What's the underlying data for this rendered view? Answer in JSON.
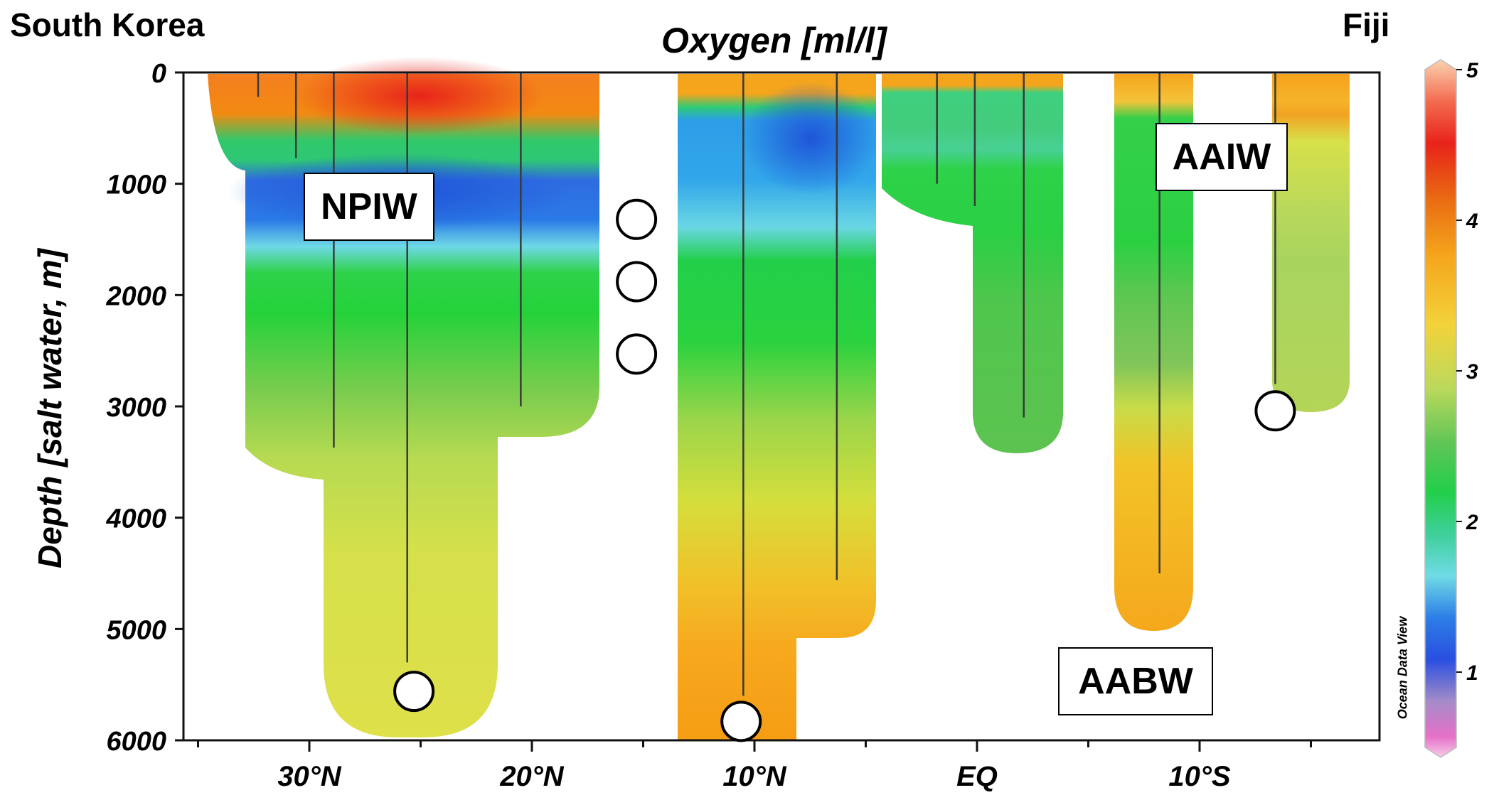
{
  "header": {
    "left_label": "South Korea",
    "right_label": "Fiji"
  },
  "chart_data": {
    "type": "heatmap",
    "title": "Oxygen [ml/l]",
    "xlabel": "",
    "ylabel": "Depth [salt water, m]",
    "x_ticks": [
      "30°N",
      "20°N",
      "10°N",
      "EQ",
      "10°S"
    ],
    "x_tick_positions": [
      30,
      20,
      10,
      0,
      -10
    ],
    "ylim": [
      0,
      6000
    ],
    "y_ticks": [
      0,
      1000,
      2000,
      3000,
      4000,
      5000,
      6000
    ],
    "colorbar": {
      "min": 0.5,
      "max": 5,
      "ticks": [
        1,
        2,
        3,
        4,
        5
      ],
      "credit": "Ocean Data View"
    },
    "water_masses": [
      {
        "label": "NPIW",
        "lat": 31.5,
        "depth": 1200
      },
      {
        "label": "AAIW",
        "lat": -13.5,
        "depth": 750
      },
      {
        "label": "AABW",
        "lat": -7.5,
        "depth": 5450
      }
    ],
    "stations": [
      {
        "lat": 32.3,
        "depth": 220
      },
      {
        "lat": 30.6,
        "depth": 770
      },
      {
        "lat": 28.9,
        "depth": 3370
      },
      {
        "lat": 25.6,
        "depth": 5300
      },
      {
        "lat": 20.5,
        "depth": 3000
      },
      {
        "lat": 10.5,
        "depth": 5600
      },
      {
        "lat": 6.3,
        "depth": 4560
      },
      {
        "lat": 1.8,
        "depth": 1000
      },
      {
        "lat": 0.1,
        "depth": 1200
      },
      {
        "lat": -2.1,
        "depth": 3100
      },
      {
        "lat": -8.2,
        "depth": 4500
      },
      {
        "lat": -13.4,
        "depth": 2800
      }
    ],
    "markers": [
      {
        "lat": 25.3,
        "depth": 5560
      },
      {
        "lat": 15.3,
        "depth": 1320
      },
      {
        "lat": 15.3,
        "depth": 1880
      },
      {
        "lat": 15.3,
        "depth": 2530
      },
      {
        "lat": 10.6,
        "depth": 5830
      },
      {
        "lat": -13.4,
        "depth": 3040
      }
    ]
  }
}
